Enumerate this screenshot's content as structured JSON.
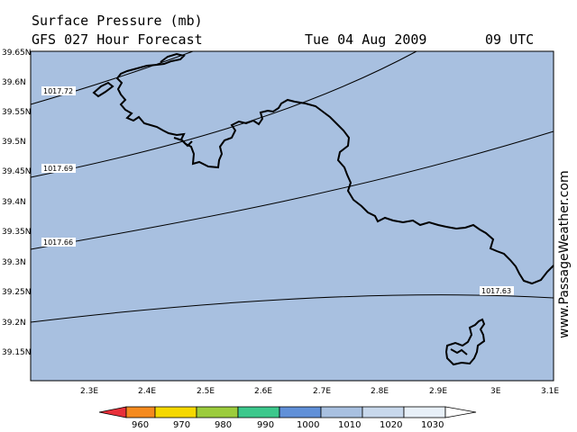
{
  "header": {
    "title": "Surface Pressure (mb)",
    "forecast": "GFS 027 Hour Forecast",
    "date": "Tue 04 Aug 2009",
    "time": "09 UTC"
  },
  "watermark": "www.PassageWeather.com",
  "map": {
    "sea_color": "#a8c0e0",
    "land_color": "#a8c0e0",
    "y_ticks": [
      "39.65N",
      "39.6N",
      "39.55N",
      "39.5N",
      "39.45N",
      "39.4N",
      "39.35N",
      "39.3N",
      "39.25N",
      "39.2N",
      "39.15N"
    ],
    "x_ticks": [
      "2.3E",
      "2.4E",
      "2.5E",
      "2.6E",
      "2.7E",
      "2.8E",
      "2.9E",
      "3E",
      "3.1E"
    ],
    "isobars": [
      {
        "label": "1017.72"
      },
      {
        "label": "1017.69"
      },
      {
        "label": "1017.66"
      },
      {
        "label": "1017.63"
      }
    ]
  },
  "colorbar": {
    "labels": [
      "960",
      "970",
      "980",
      "990",
      "1000",
      "1010",
      "1020",
      "1030"
    ],
    "colors": [
      "#e8303a",
      "#f58a1e",
      "#f5d800",
      "#9ccc3c",
      "#3cc88c",
      "#6090d8",
      "#a8c0e0",
      "#e8f0f8"
    ]
  }
}
